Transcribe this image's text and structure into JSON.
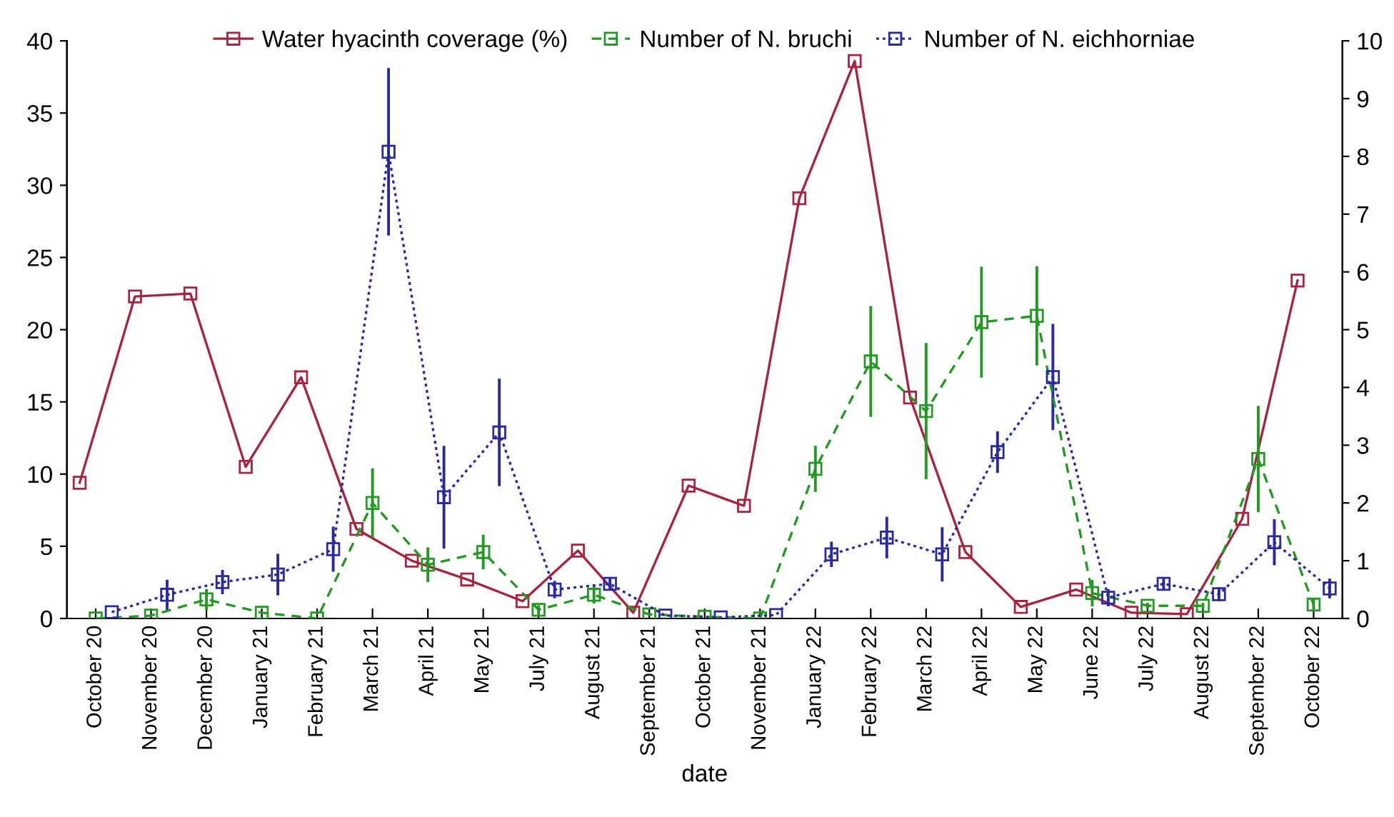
{
  "chart_data": {
    "type": "line",
    "xlabel": "date",
    "categories": [
      "October 20",
      "November 20",
      "December 20",
      "January 21",
      "February 21",
      "March 21",
      "April 21",
      "May 21",
      "July 21",
      "August 21",
      "September 21",
      "October 21",
      "November 21",
      "January 22",
      "February 22",
      "March 22",
      "April 22",
      "May 22",
      "June 22",
      "July 22",
      "August 22",
      "September 22",
      "October 22"
    ],
    "ylim": [
      0,
      40
    ],
    "yticks": [
      0,
      5,
      10,
      15,
      20,
      25,
      30,
      35,
      40
    ],
    "y2lim": [
      0,
      10
    ],
    "y2ticks": [
      0,
      1,
      2,
      3,
      4,
      5,
      6,
      7,
      8,
      9,
      10
    ],
    "grid": false,
    "legend": "top",
    "marker": "square",
    "series": [
      {
        "name": "Water hyacinth coverage (%)",
        "color": "#a8233f",
        "line_style": "solid",
        "values": [
          9.4,
          22.3,
          22.5,
          10.5,
          16.7,
          6.2,
          4.0,
          2.7,
          1.2,
          4.7,
          0.4,
          9.2,
          7.8,
          29.1,
          38.6,
          15.3,
          4.6,
          0.8,
          2.0,
          0.4,
          0.3,
          6.9,
          23.4
        ]
      },
      {
        "name": "Number of N. bruchi",
        "color": "#229a22",
        "axis": "y2",
        "line_style": "dashed",
        "values": [
          0.0,
          0.05,
          0.33,
          0.1,
          0.0,
          2.0,
          0.93,
          1.15,
          0.15,
          0.41,
          0.07,
          0.03,
          0.0,
          2.59,
          4.45,
          3.59,
          5.13,
          5.24,
          0.44,
          0.22,
          0.22,
          2.76,
          0.24
        ],
        "errors": [
          null,
          null,
          0.18,
          null,
          null,
          0.6,
          0.3,
          0.3,
          0.08,
          0.15,
          null,
          null,
          null,
          0.4,
          0.96,
          1.18,
          0.96,
          0.86,
          0.23,
          0.05,
          0.05,
          0.92,
          0.1
        ]
      },
      {
        "name": "Number of N. eichhorniae",
        "color": "#2a2a9e",
        "axis": "y2",
        "line_style": "dotted",
        "values": [
          0.11,
          0.41,
          0.63,
          0.76,
          1.2,
          8.08,
          2.1,
          3.22,
          0.5,
          0.6,
          0.05,
          0.02,
          0.06,
          1.11,
          1.4,
          1.11,
          2.88,
          4.18,
          0.36,
          0.6,
          0.42,
          1.32,
          0.52
        ],
        "errors": [
          null,
          0.26,
          0.21,
          0.36,
          0.39,
          1.45,
          0.89,
          0.93,
          0.15,
          0.1,
          null,
          null,
          null,
          0.22,
          0.36,
          0.47,
          0.36,
          0.92,
          0.15,
          0.1,
          0.12,
          0.4,
          0.17
        ]
      }
    ]
  }
}
